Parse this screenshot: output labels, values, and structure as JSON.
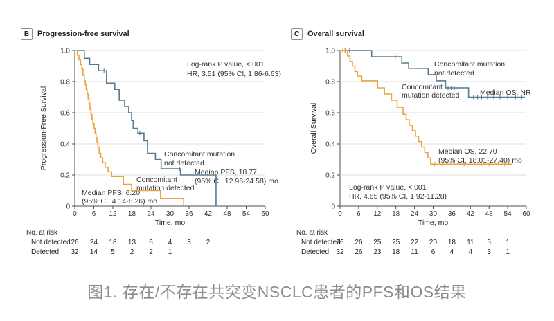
{
  "style": {
    "color_not_detected": "#587A8C",
    "color_detected": "#E8A33D",
    "grid_color": "#dcdcdc",
    "axis_color": "#4d4d4d",
    "caption_color": "#8c8c8c"
  },
  "panels": {
    "b": {
      "label": "B",
      "title": "Progression-free survival",
      "annotations": {
        "stats1": "Log-rank P value, <.001",
        "stats2": "HR, 3.51 (95% CI, 1.86-6.63)",
        "group_not_detected_l1": "Concomitant mutation",
        "group_not_detected_l2": "not detected",
        "group_detected_l1": "Concomitant",
        "group_detected_l2": "mutation detected",
        "median_not_detected_l1": "Median PFS, 18.77",
        "median_not_detected_l2": "(95% CI, 12.96-24.58) mo",
        "median_detected_l1": "Median PFS, 6.20",
        "median_detected_l2": "(95% CI, 4.14-8.26) mo"
      }
    },
    "c": {
      "label": "C",
      "title": "Overall survival",
      "annotations": {
        "stats1": "Log-rank P value, <.001",
        "stats2": "HR, 4.65 (95% CI, 1.92-11.28)",
        "group_not_detected_l1": "Concomitant mutation",
        "group_not_detected_l2": "not detected",
        "group_detected_l1": "Concomitant",
        "group_detected_l2": "mutation detected",
        "median_not_detected": "Median OS, NR",
        "median_detected_l1": "Median OS, 22.70",
        "median_detected_l2": "(95% CI, 18.01-27.40) mo"
      }
    }
  },
  "caption": "图1. 存在/不存在共突变NSCLC患者的PFS和OS结果",
  "chart_data": [
    {
      "type": "line",
      "subtype": "kaplan-meier-step",
      "title": "Progression-free survival",
      "xlabel": "Time, mo",
      "ylabel": "Progression-Free Survival",
      "xlim": [
        0,
        60
      ],
      "ylim": [
        0,
        1.0
      ],
      "xticks": [
        0,
        6,
        12,
        18,
        24,
        30,
        36,
        42,
        48,
        54,
        60
      ],
      "yticks": [
        0,
        0.2,
        0.4,
        0.6,
        0.8,
        1.0
      ],
      "grid": "horizontal",
      "stats": {
        "log_rank_p": "<.001",
        "hr": "3.51",
        "hr_95ci": "1.86-6.63"
      },
      "series": [
        {
          "name": "Concomitant mutation not detected",
          "color": "#587A8C",
          "median_months": 18.77,
          "median_95ci": "12.96-24.58",
          "steps": [
            [
              0,
              1.0
            ],
            [
              3,
              0.95
            ],
            [
              4.7,
              0.91
            ],
            [
              7.5,
              0.87
            ],
            [
              10,
              0.79
            ],
            [
              12.6,
              0.75
            ],
            [
              14,
              0.68
            ],
            [
              15.7,
              0.64
            ],
            [
              17,
              0.6
            ],
            [
              17.9,
              0.55
            ],
            [
              18.4,
              0.5
            ],
            [
              19.9,
              0.47
            ],
            [
              21.8,
              0.42
            ],
            [
              22.9,
              0.34
            ],
            [
              25.4,
              0.3
            ],
            [
              27.2,
              0.24
            ],
            [
              33.3,
              0.2
            ],
            [
              44.5,
              0
            ]
          ],
          "censors": [
            [
              9.2,
              0.87
            ],
            [
              20.5,
              0.47
            ],
            [
              33,
              0.24
            ]
          ]
        },
        {
          "name": "Concomitant mutation detected",
          "color": "#E8A33D",
          "median_months": 6.2,
          "median_95ci": "4.14-8.26",
          "steps": [
            [
              0,
              1.0
            ],
            [
              0.8,
              0.97
            ],
            [
              1.3,
              0.94
            ],
            [
              1.8,
              0.91
            ],
            [
              2.2,
              0.88
            ],
            [
              2.6,
              0.84
            ],
            [
              3,
              0.81
            ],
            [
              3.3,
              0.78
            ],
            [
              3.6,
              0.75
            ],
            [
              3.9,
              0.72
            ],
            [
              4.2,
              0.69
            ],
            [
              4.5,
              0.66
            ],
            [
              4.8,
              0.62
            ],
            [
              5.1,
              0.59
            ],
            [
              5.4,
              0.56
            ],
            [
              5.7,
              0.53
            ],
            [
              6.1,
              0.5
            ],
            [
              6.4,
              0.47
            ],
            [
              6.7,
              0.44
            ],
            [
              7,
              0.41
            ],
            [
              7.3,
              0.38
            ],
            [
              7.7,
              0.34
            ],
            [
              8.2,
              0.31
            ],
            [
              8.8,
              0.28
            ],
            [
              9.6,
              0.25
            ],
            [
              10.5,
              0.22
            ],
            [
              11.6,
              0.19
            ],
            [
              15.3,
              0.14
            ],
            [
              17.9,
              0.1
            ],
            [
              27,
              0.05
            ],
            [
              34.3,
              0
            ]
          ],
          "censors": []
        }
      ],
      "at_risk": {
        "header": "No. at risk",
        "times": [
          0,
          6,
          12,
          18,
          24,
          30,
          36,
          42
        ],
        "rows": [
          {
            "label": "Not detected",
            "values": [
              26,
              24,
              18,
              13,
              6,
              4,
              3,
              2
            ]
          },
          {
            "label": "Detected",
            "values": [
              32,
              14,
              5,
              2,
              2,
              1
            ]
          }
        ]
      }
    },
    {
      "type": "line",
      "subtype": "kaplan-meier-step",
      "title": "Overall survival",
      "xlabel": "Time, mo",
      "ylabel": "Overall Survival",
      "xlim": [
        0,
        60
      ],
      "ylim": [
        0,
        1.0
      ],
      "xticks": [
        0,
        6,
        12,
        18,
        24,
        30,
        36,
        42,
        48,
        54,
        60
      ],
      "yticks": [
        0,
        0.2,
        0.4,
        0.6,
        0.8,
        1.0
      ],
      "grid": "horizontal",
      "stats": {
        "log_rank_p": "<.001",
        "hr": "4.65",
        "hr_95ci": "1.92-11.28"
      },
      "series": [
        {
          "name": "Concomitant mutation not detected",
          "color": "#587A8C",
          "median_months": "NR",
          "steps": [
            [
              0,
              1.0
            ],
            [
              10.2,
              0.96
            ],
            [
              19.9,
              0.92
            ],
            [
              22.1,
              0.885
            ],
            [
              28.4,
              0.845
            ],
            [
              31,
              0.805
            ],
            [
              34,
              0.76
            ],
            [
              41.4,
              0.7
            ]
          ],
          "end": 59.5,
          "censors": [
            [
              1.7,
              1.0
            ],
            [
              3.1,
              1.0
            ],
            [
              17.8,
              0.96
            ],
            [
              34.8,
              0.76
            ],
            [
              35.8,
              0.76
            ],
            [
              36.8,
              0.76
            ],
            [
              38,
              0.76
            ],
            [
              43,
              0.7
            ],
            [
              44.3,
              0.7
            ],
            [
              45.6,
              0.7
            ],
            [
              47.5,
              0.7
            ],
            [
              49.5,
              0.7
            ],
            [
              51.5,
              0.7
            ],
            [
              54,
              0.7
            ],
            [
              56.5,
              0.7
            ],
            [
              58.5,
              0.7
            ]
          ],
          "median_annotation": "Median OS, NR"
        },
        {
          "name": "Concomitant mutation detected",
          "color": "#E8A33D",
          "median_months": 22.7,
          "median_95ci": "18.01-27.40",
          "steps": [
            [
              0,
              1.0
            ],
            [
              2.4,
              0.965
            ],
            [
              3.2,
              0.93
            ],
            [
              4,
              0.9
            ],
            [
              4.8,
              0.865
            ],
            [
              5.6,
              0.835
            ],
            [
              7,
              0.805
            ],
            [
              12.1,
              0.76
            ],
            [
              14.3,
              0.72
            ],
            [
              16.6,
              0.68
            ],
            [
              18.4,
              0.635
            ],
            [
              20.3,
              0.59
            ],
            [
              21.3,
              0.555
            ],
            [
              22.3,
              0.52
            ],
            [
              23.3,
              0.485
            ],
            [
              24.3,
              0.45
            ],
            [
              25.3,
              0.415
            ],
            [
              26.3,
              0.38
            ],
            [
              27.3,
              0.345
            ],
            [
              28.3,
              0.31
            ],
            [
              29.2,
              0.27
            ]
          ],
          "end": 55.3,
          "censors": [
            [
              0.9,
              1.0
            ],
            [
              1.6,
              1.0
            ],
            [
              30.5,
              0.27
            ],
            [
              33,
              0.27
            ],
            [
              40,
              0.27
            ],
            [
              45.5,
              0.27
            ],
            [
              48,
              0.27
            ],
            [
              53,
              0.27
            ]
          ]
        }
      ],
      "at_risk": {
        "header": "No. at risk",
        "times": [
          0,
          6,
          12,
          18,
          24,
          30,
          36,
          42,
          48,
          54
        ],
        "rows": [
          {
            "label": "Not detected",
            "values": [
              26,
              26,
              25,
              25,
              22,
              20,
              18,
              11,
              5,
              1
            ]
          },
          {
            "label": "Detected",
            "values": [
              32,
              26,
              23,
              18,
              11,
              6,
              4,
              4,
              3,
              1
            ]
          }
        ]
      }
    }
  ]
}
